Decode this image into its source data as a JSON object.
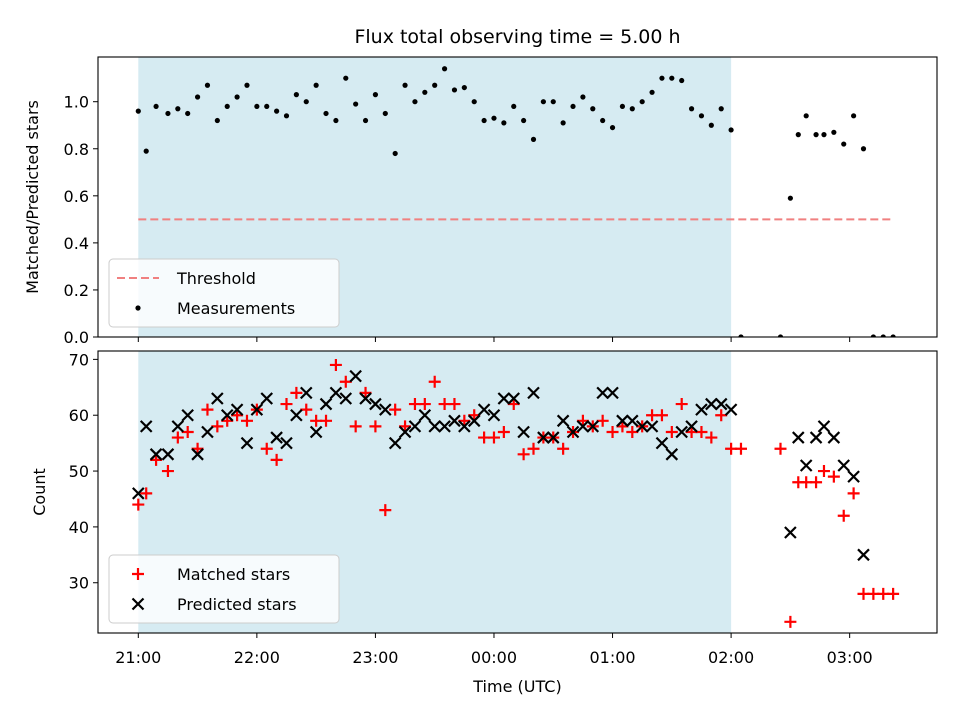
{
  "chart_data": [
    {
      "type": "scatter",
      "title": "Flux total observing time = 5.00 h",
      "ylabel": "Matched/Predicted stars",
      "xlabel": "",
      "ylim": [
        0,
        1.19
      ],
      "yticks": [
        0.0,
        0.2,
        0.4,
        0.6,
        0.8,
        1.0
      ],
      "ytick_labels": [
        "0.0",
        "0.2",
        "0.4",
        "0.6",
        "0.8",
        "1.0"
      ],
      "xticks": [
        "21:00",
        "22:00",
        "23:00",
        "00:00",
        "01:00",
        "02:00",
        "03:00"
      ],
      "observing_window": [
        "21:00",
        "02:00"
      ],
      "threshold": {
        "name": "Threshold",
        "value": 0.5,
        "x_range": [
          "21:00",
          "03:22"
        ],
        "color": "#f08080",
        "style": "dashed"
      },
      "legend": {
        "position": "lower-left",
        "entries": [
          "Threshold",
          "Measurements"
        ]
      },
      "series": [
        {
          "name": "Measurements",
          "color": "#000000",
          "marker": "dot",
          "x": [
            "21:00",
            "21:04",
            "21:09",
            "21:15",
            "21:20",
            "21:25",
            "21:30",
            "21:35",
            "21:40",
            "21:45",
            "21:50",
            "21:55",
            "22:00",
            "22:05",
            "22:10",
            "22:15",
            "22:20",
            "22:25",
            "22:30",
            "22:35",
            "22:40",
            "22:45",
            "22:50",
            "22:55",
            "23:00",
            "23:05",
            "23:10",
            "23:15",
            "23:20",
            "23:25",
            "23:30",
            "23:35",
            "23:40",
            "23:45",
            "23:50",
            "23:55",
            "00:00",
            "00:05",
            "00:10",
            "00:15",
            "00:20",
            "00:25",
            "00:30",
            "00:35",
            "00:40",
            "00:45",
            "00:50",
            "00:55",
            "01:00",
            "01:05",
            "01:10",
            "01:15",
            "01:20",
            "01:25",
            "01:30",
            "01:35",
            "01:40",
            "01:45",
            "01:50",
            "01:55",
            "02:00",
            "02:05",
            "02:25",
            "02:30",
            "02:34",
            "02:38",
            "02:43",
            "02:47",
            "02:52",
            "02:57",
            "03:02",
            "03:07",
            "03:12",
            "03:17",
            "03:22"
          ],
          "y": [
            0.96,
            0.79,
            0.98,
            0.95,
            0.97,
            0.95,
            1.02,
            1.07,
            0.92,
            0.98,
            1.02,
            1.07,
            0.98,
            0.98,
            0.96,
            0.94,
            1.03,
            1.0,
            1.07,
            0.95,
            0.92,
            1.1,
            0.99,
            0.92,
            1.03,
            0.95,
            0.78,
            1.07,
            1.0,
            1.04,
            1.07,
            1.14,
            1.05,
            1.06,
            1.0,
            0.92,
            0.93,
            0.91,
            0.98,
            0.92,
            0.84,
            1.0,
            1.0,
            0.91,
            0.98,
            1.02,
            0.97,
            0.92,
            0.89,
            0.98,
            0.97,
            1.0,
            1.04,
            1.1,
            1.1,
            1.09,
            0.97,
            0.94,
            0.9,
            0.97,
            0.88,
            0.0,
            0.0,
            0.59,
            0.86,
            0.94,
            0.86,
            0.86,
            0.87,
            0.82,
            0.94,
            0.8,
            0.0,
            0.0,
            0.0
          ]
        }
      ]
    },
    {
      "type": "scatter",
      "title": "",
      "ylabel": "Count",
      "xlabel": "Time (UTC)",
      "ylim": [
        21,
        71.5
      ],
      "yticks": [
        30,
        40,
        50,
        60,
        70
      ],
      "xticks": [
        "21:00",
        "22:00",
        "23:00",
        "00:00",
        "01:00",
        "02:00",
        "03:00"
      ],
      "observing_window": [
        "21:00",
        "02:00"
      ],
      "legend": {
        "position": "lower-left",
        "entries": [
          "Matched stars",
          "Predicted stars"
        ]
      },
      "series": [
        {
          "name": "Matched stars",
          "color": "#ff0000",
          "marker": "plus",
          "x": [
            "21:00",
            "21:04",
            "21:09",
            "21:15",
            "21:20",
            "21:25",
            "21:30",
            "21:35",
            "21:40",
            "21:45",
            "21:50",
            "21:55",
            "22:00",
            "22:05",
            "22:10",
            "22:15",
            "22:20",
            "22:25",
            "22:30",
            "22:35",
            "22:40",
            "22:45",
            "22:50",
            "22:55",
            "23:00",
            "23:05",
            "23:10",
            "23:15",
            "23:20",
            "23:25",
            "23:30",
            "23:35",
            "23:40",
            "23:45",
            "23:50",
            "23:55",
            "00:00",
            "00:05",
            "00:10",
            "00:15",
            "00:20",
            "00:25",
            "00:30",
            "00:35",
            "00:40",
            "00:45",
            "00:50",
            "00:55",
            "01:00",
            "01:05",
            "01:10",
            "01:15",
            "01:20",
            "01:25",
            "01:30",
            "01:35",
            "01:40",
            "01:45",
            "01:50",
            "01:55",
            "02:00",
            "02:05",
            "02:25",
            "02:30",
            "02:34",
            "02:38",
            "02:43",
            "02:47",
            "02:52",
            "02:57",
            "03:02",
            "03:07",
            "03:12",
            "03:17",
            "03:22"
          ],
          "y": [
            44,
            46,
            52,
            50,
            56,
            57,
            54,
            61,
            58,
            59,
            60,
            59,
            61,
            54,
            52,
            62,
            64,
            61,
            59,
            59,
            69,
            66,
            58,
            64,
            58,
            43,
            61,
            58,
            62,
            62,
            66,
            62,
            62,
            59,
            60,
            56,
            56,
            57,
            62,
            53,
            54,
            56,
            56,
            54,
            57,
            59,
            58,
            59,
            57,
            58,
            57,
            58,
            60,
            60,
            57,
            62,
            57,
            57,
            56,
            60,
            54,
            54,
            54,
            23,
            48,
            48,
            48,
            50,
            49,
            42,
            46,
            28,
            28,
            28,
            28
          ]
        },
        {
          "name": "Predicted stars",
          "color": "#000000",
          "marker": "cross",
          "x": [
            "21:00",
            "21:04",
            "21:09",
            "21:15",
            "21:20",
            "21:25",
            "21:30",
            "21:35",
            "21:40",
            "21:45",
            "21:50",
            "21:55",
            "22:00",
            "22:05",
            "22:10",
            "22:15",
            "22:20",
            "22:25",
            "22:30",
            "22:35",
            "22:40",
            "22:45",
            "22:50",
            "22:55",
            "23:00",
            "23:05",
            "23:10",
            "23:15",
            "23:20",
            "23:25",
            "23:30",
            "23:35",
            "23:40",
            "23:45",
            "23:50",
            "23:55",
            "00:00",
            "00:05",
            "00:10",
            "00:15",
            "00:20",
            "00:25",
            "00:30",
            "00:35",
            "00:40",
            "00:45",
            "00:50",
            "00:55",
            "01:00",
            "01:05",
            "01:10",
            "01:15",
            "01:20",
            "01:25",
            "01:30",
            "01:35",
            "01:40",
            "01:45",
            "01:50",
            "01:55",
            "02:00",
            "02:30",
            "02:34",
            "02:38",
            "02:43",
            "02:47",
            "02:52",
            "02:57",
            "03:02",
            "03:07"
          ],
          "y": [
            46,
            58,
            53,
            53,
            58,
            60,
            53,
            57,
            63,
            60,
            61,
            55,
            61,
            63,
            56,
            55,
            60,
            64,
            57,
            62,
            64,
            63,
            67,
            63,
            62,
            61,
            55,
            57,
            58,
            60,
            58,
            58,
            59,
            58,
            59,
            61,
            60,
            63,
            63,
            57,
            64,
            56,
            56,
            59,
            57,
            58,
            58,
            64,
            64,
            59,
            59,
            58,
            58,
            55,
            53,
            57,
            58,
            61,
            62,
            62,
            61,
            39,
            56,
            51,
            56,
            58,
            56,
            51,
            49,
            35
          ]
        }
      ]
    }
  ]
}
